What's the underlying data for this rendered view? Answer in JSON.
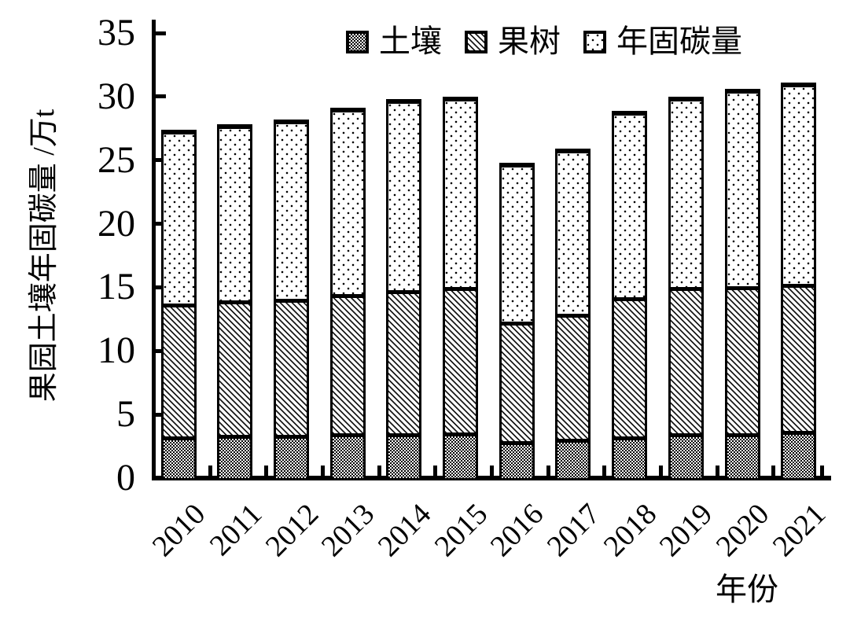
{
  "figure": {
    "background": "#ffffff",
    "foreground": "#000000"
  },
  "chart_data": {
    "type": "bar",
    "stacked": true,
    "title": "",
    "categories": [
      "2010",
      "2011",
      "2012",
      "2013",
      "2014",
      "2015",
      "2016",
      "2017",
      "2018",
      "2019",
      "2020",
      "2021"
    ],
    "series": [
      {
        "name": "土壤",
        "pattern": "checkerboard",
        "values": [
          3.3,
          3.4,
          3.4,
          3.5,
          3.5,
          3.6,
          2.9,
          3.1,
          3.3,
          3.5,
          3.5,
          3.7
        ]
      },
      {
        "name": "果树",
        "pattern": "diagonal-hatch",
        "values": [
          10.4,
          10.6,
          10.7,
          11.0,
          11.3,
          11.4,
          9.4,
          9.8,
          10.9,
          11.5,
          11.6,
          11.6
        ]
      },
      {
        "name": "年固碳量",
        "pattern": "dots",
        "values": [
          13.7,
          13.8,
          14.1,
          14.6,
          15.0,
          15.0,
          12.5,
          13.0,
          14.7,
          15.0,
          15.5,
          15.8
        ]
      }
    ],
    "stack_totals": [
      27.4,
      27.8,
      28.2,
      29.1,
      29.8,
      30.0,
      24.8,
      25.9,
      28.9,
      30.0,
      30.6,
      31.1
    ],
    "xlabel": "年份",
    "ylabel": "果园土壤年固碳量 /万t",
    "ylim": [
      0,
      35
    ],
    "yticks": [
      0,
      5,
      10,
      15,
      20,
      25,
      30,
      35
    ],
    "grid": false,
    "legend_position": "top"
  }
}
